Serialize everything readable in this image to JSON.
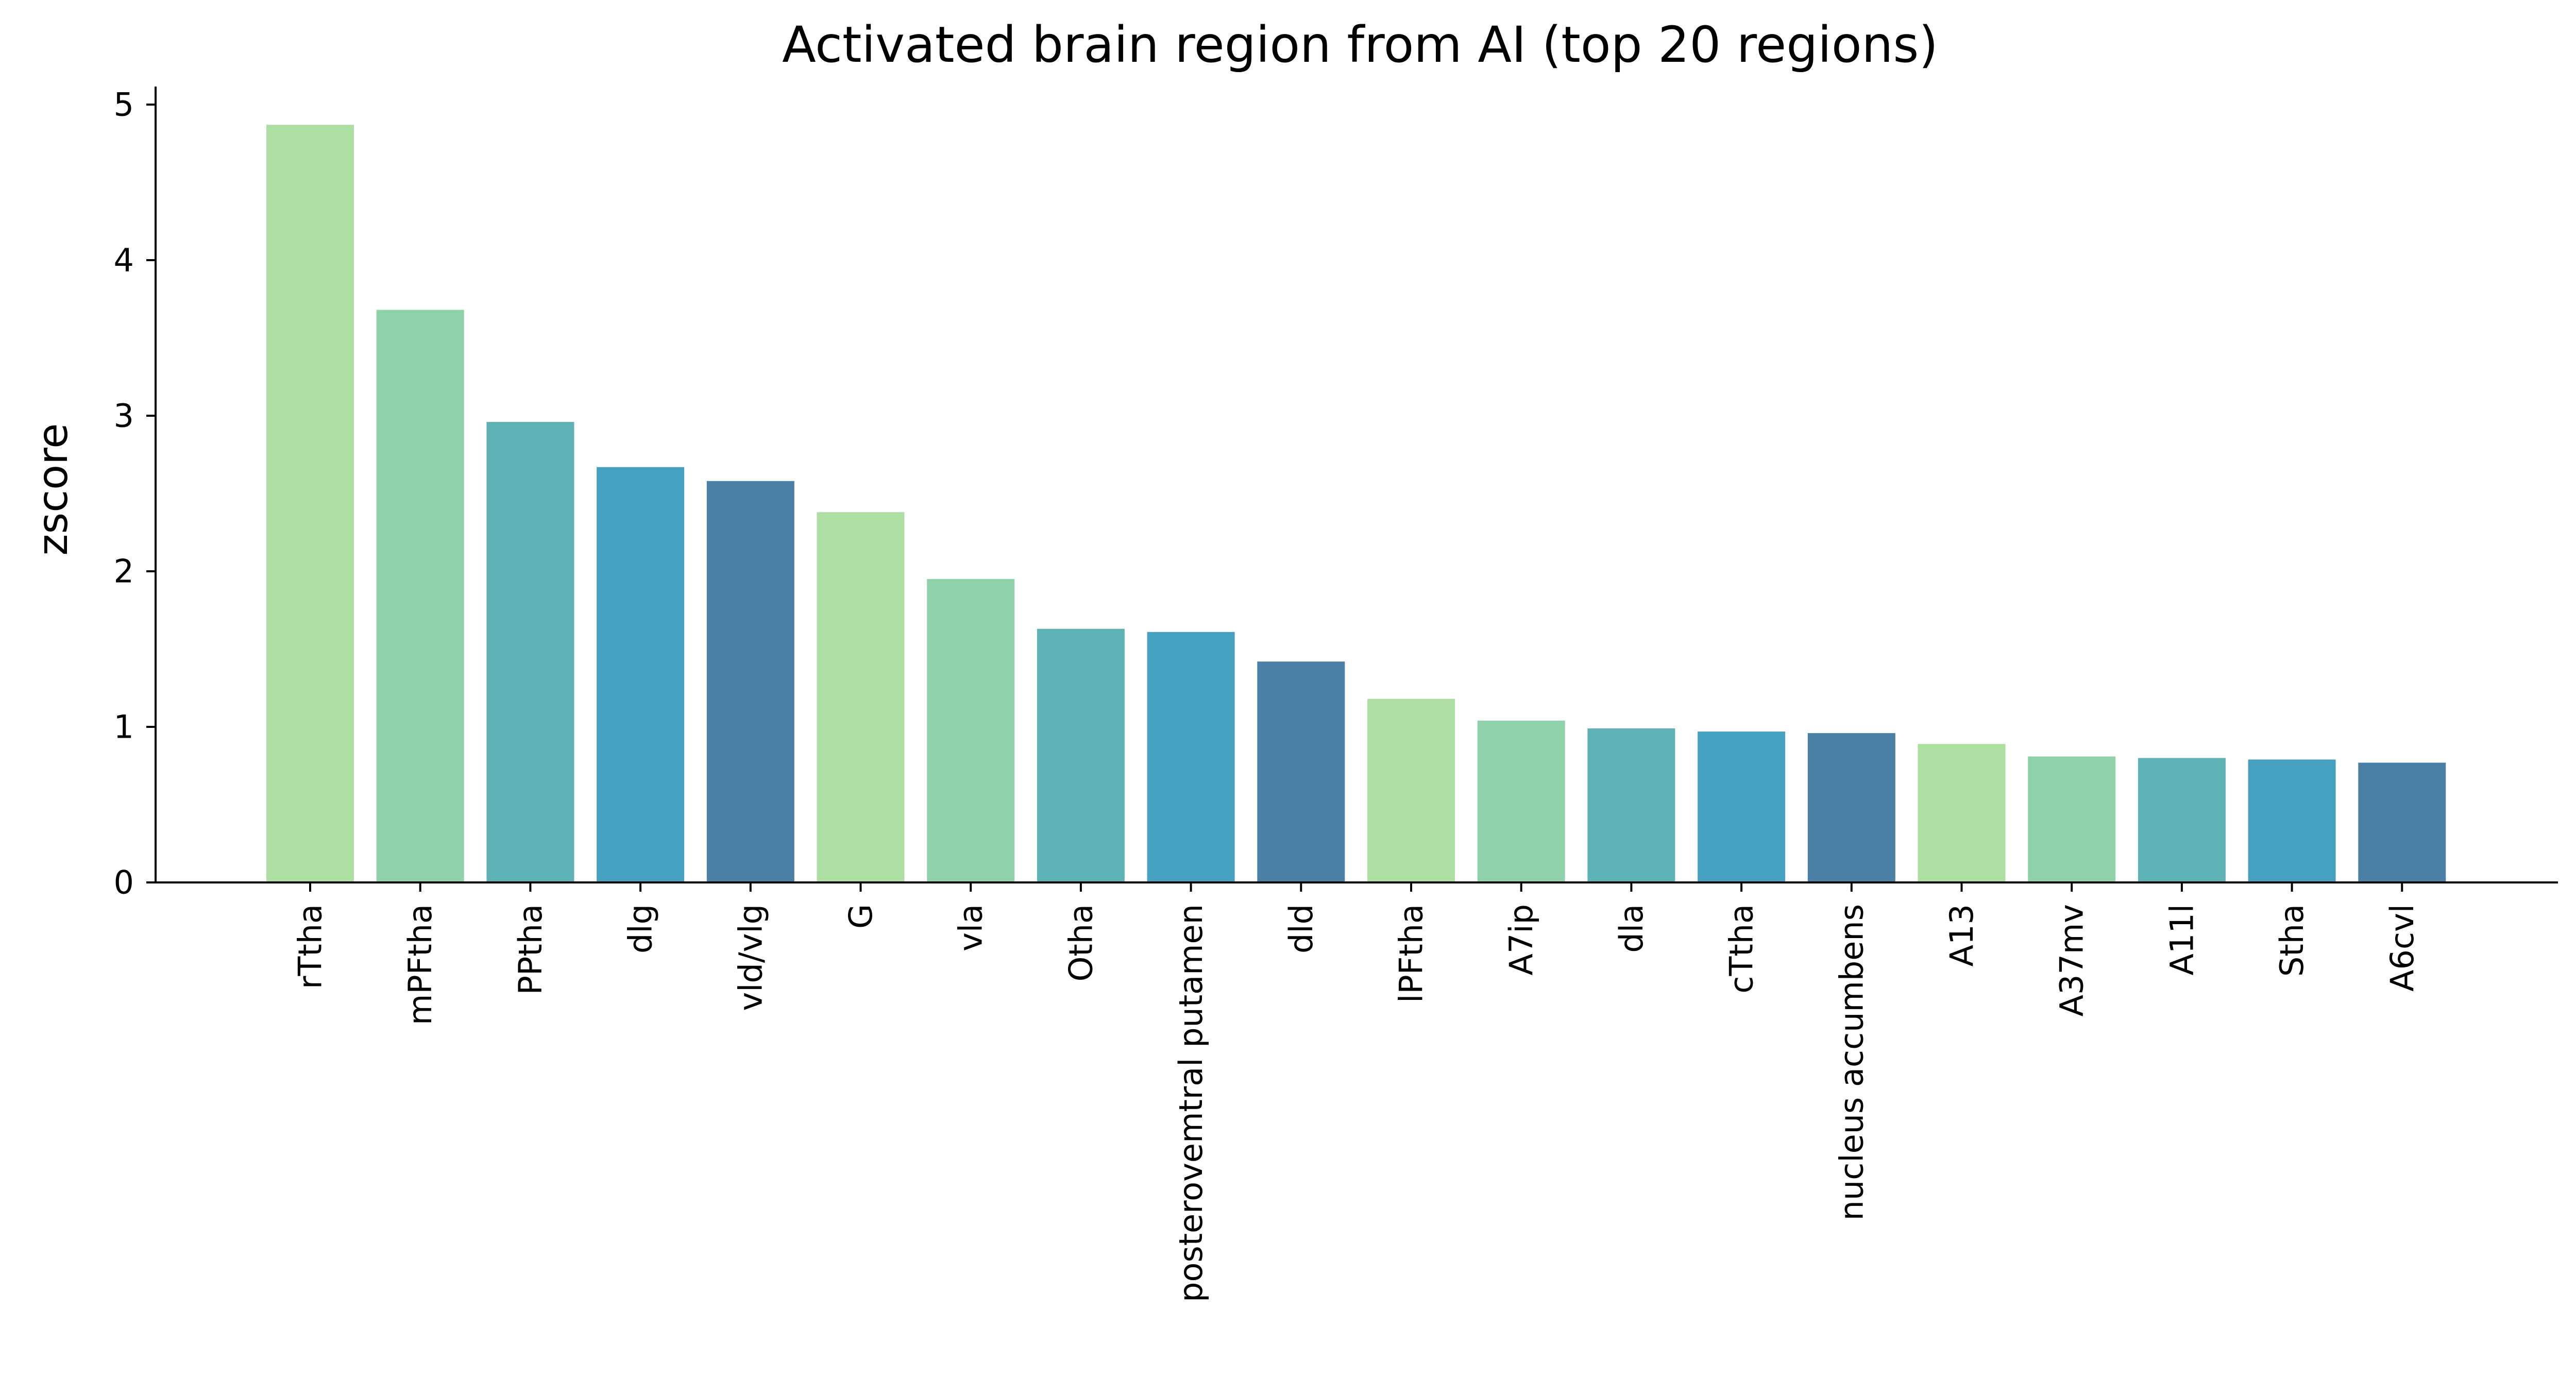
{
  "chart_data": {
    "type": "bar",
    "title": "Activated brain region from AI (top 20 regions)",
    "xlabel": "",
    "ylabel": "zscore",
    "ylim": [
      0,
      5.12
    ],
    "yticks": [
      0,
      1,
      2,
      3,
      4,
      5
    ],
    "grid": false,
    "categories": [
      "rTtha",
      "mPFtha",
      "PPtha",
      "dlg",
      "vld/vlg",
      "G",
      "vla",
      "Otha",
      "posterovemtral putamen",
      "dld",
      "lPFtha",
      "A7ip",
      "dla",
      "cTtha",
      "nucleus accumbens",
      "A13",
      "A37mv",
      "A11l",
      "Stha",
      "A6cvl"
    ],
    "values": [
      4.87,
      3.68,
      2.96,
      2.67,
      2.58,
      2.38,
      1.95,
      1.63,
      1.61,
      1.42,
      1.18,
      1.04,
      0.99,
      0.97,
      0.96,
      0.89,
      0.81,
      0.8,
      0.79,
      0.77
    ],
    "palette": [
      "#acdfa1",
      "#8fd1a9",
      "#5eb2b6",
      "#46a0bf",
      "#4a80a5"
    ]
  }
}
